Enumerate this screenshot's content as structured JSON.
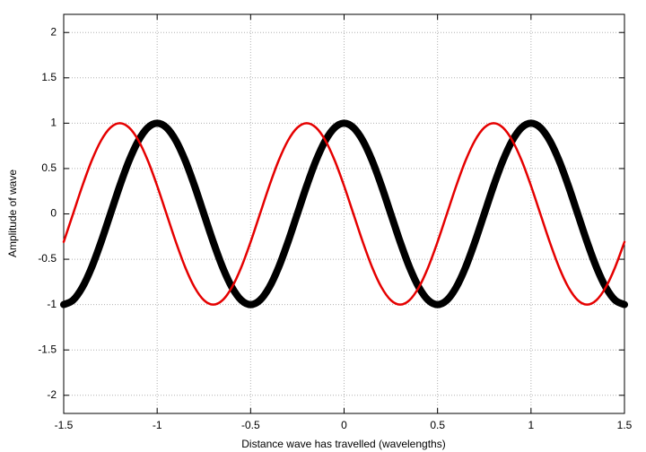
{
  "chart_data": {
    "type": "line",
    "xlabel": "Distance wave has travelled (wavelengths)",
    "ylabel": "Amplitude of wave",
    "xlim": [
      -1.5,
      1.5
    ],
    "xticks": [
      -1.5,
      -1,
      -0.5,
      0,
      0.5,
      1,
      1.5
    ],
    "ylim": [
      -2.2,
      2.2
    ],
    "yticks": [
      -2,
      -1.5,
      -1,
      -0.5,
      0,
      0.5,
      1,
      1.5,
      2
    ],
    "grid": true,
    "x": [
      -1.5,
      -1.45,
      -1.4,
      -1.35,
      -1.3,
      -1.25,
      -1.2,
      -1.15,
      -1.1,
      -1.05,
      -1,
      -0.95,
      -0.9,
      -0.85,
      -0.8,
      -0.75,
      -0.7,
      -0.65,
      -0.6,
      -0.55,
      -0.5,
      -0.45,
      -0.4,
      -0.35,
      -0.3,
      -0.25,
      -0.2,
      -0.15,
      -0.1,
      -0.05,
      0,
      0.05,
      0.1,
      0.15,
      0.2,
      0.25,
      0.3,
      0.35,
      0.4,
      0.45,
      0.5,
      0.55,
      0.6,
      0.65,
      0.7,
      0.75,
      0.8,
      0.85,
      0.9,
      0.95,
      1,
      1.05,
      1.1,
      1.15,
      1.2,
      1.25,
      1.3,
      1.35,
      1.4,
      1.45,
      1.5
    ],
    "series": [
      {
        "color": "#000000",
        "values": [
          -1,
          -0.951,
          -0.809,
          -0.588,
          -0.309,
          0,
          0.309,
          0.588,
          0.809,
          0.951,
          1,
          0.951,
          0.809,
          0.588,
          0.309,
          0,
          -0.309,
          -0.588,
          -0.809,
          -0.951,
          -1,
          -0.951,
          -0.809,
          -0.588,
          -0.309,
          0,
          0.309,
          0.588,
          0.809,
          0.951,
          1,
          0.951,
          0.809,
          0.588,
          0.309,
          0,
          -0.309,
          -0.588,
          -0.809,
          -0.951,
          -1,
          -0.951,
          -0.809,
          -0.588,
          -0.309,
          0,
          0.309,
          0.588,
          0.809,
          0.951,
          1,
          0.951,
          0.809,
          0.588,
          0.309,
          0,
          -0.309,
          -0.588,
          -0.809,
          -0.951,
          -1
        ]
      },
      {
        "color": "#e50000",
        "values": [
          -0.309,
          0,
          0.309,
          0.588,
          0.809,
          0.951,
          1,
          0.951,
          0.809,
          0.588,
          0.309,
          0,
          -0.309,
          -0.588,
          -0.809,
          -0.951,
          -1,
          -0.951,
          -0.809,
          -0.588,
          -0.309,
          0,
          0.309,
          0.588,
          0.809,
          0.951,
          1,
          0.951,
          0.809,
          0.588,
          0.309,
          0,
          -0.309,
          -0.588,
          -0.809,
          -0.951,
          -1,
          -0.951,
          -0.809,
          -0.588,
          -0.309,
          0,
          0.309,
          0.588,
          0.809,
          0.951,
          1,
          0.951,
          0.809,
          0.588,
          0.309,
          0,
          -0.309,
          -0.588,
          -0.809,
          -0.951,
          -1,
          -0.951,
          -0.809,
          -0.588,
          -0.309
        ]
      }
    ]
  }
}
